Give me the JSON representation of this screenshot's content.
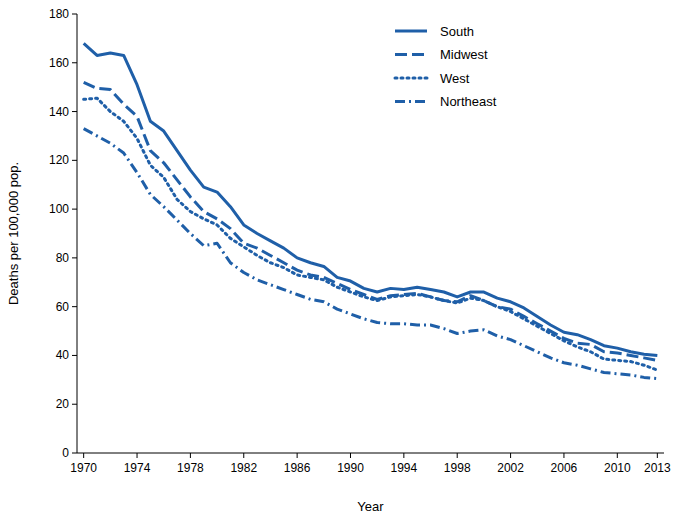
{
  "chart_data": {
    "type": "line",
    "x_label": "Year",
    "y_label": "Deaths per 100,000 pop.",
    "x": [
      1970,
      1971,
      1972,
      1973,
      1974,
      1975,
      1976,
      1977,
      1978,
      1979,
      1980,
      1981,
      1982,
      1983,
      1984,
      1985,
      1986,
      1987,
      1988,
      1989,
      1990,
      1991,
      1992,
      1993,
      1994,
      1995,
      1996,
      1997,
      1998,
      1999,
      2000,
      2001,
      2002,
      2003,
      2004,
      2005,
      2006,
      2007,
      2008,
      2009,
      2010,
      2011,
      2012,
      2013
    ],
    "series": [
      {
        "name": "South",
        "color": "#1f5fa8",
        "line_style": "solid",
        "values": [
          168,
          163,
          164,
          163,
          151,
          136,
          132,
          124,
          116,
          109,
          107,
          101,
          93.5,
          90,
          87,
          84,
          80,
          78,
          76.5,
          72,
          70.5,
          67.5,
          66,
          67.5,
          67,
          68,
          67,
          66,
          64,
          66,
          66,
          63.5,
          62,
          59.5,
          56,
          52.5,
          49.5,
          48.5,
          46.5,
          44,
          43,
          41.5,
          40.5,
          40
        ]
      },
      {
        "name": "Midwest",
        "color": "#1f5fa8",
        "line_style": "dashed",
        "values": [
          152,
          149.5,
          149,
          143,
          138,
          124,
          119,
          112,
          105,
          99,
          96,
          92,
          86,
          84,
          81,
          78,
          75,
          73,
          72,
          69.5,
          67,
          65,
          63,
          64.5,
          65,
          65.5,
          64,
          62.5,
          62,
          64.5,
          62.5,
          60,
          59,
          56,
          53,
          50,
          47,
          45,
          44.5,
          41.5,
          41,
          40,
          39,
          38
        ]
      },
      {
        "name": "West",
        "color": "#1f5fa8",
        "line_style": "dotted",
        "values": [
          145,
          145.5,
          140,
          136,
          129,
          118,
          113,
          104,
          99,
          96,
          93.5,
          88,
          84.5,
          81,
          78,
          76,
          73,
          72,
          71,
          68,
          66,
          64,
          62.5,
          64,
          64.5,
          65,
          64,
          62.5,
          61.5,
          63.5,
          62.5,
          60,
          58,
          55,
          52,
          49,
          46,
          43.5,
          41.5,
          38.5,
          38,
          37.5,
          36,
          34
        ]
      },
      {
        "name": "Northeast",
        "color": "#1f5fa8",
        "line_style": "dashdot",
        "values": [
          133,
          130,
          127,
          123,
          115,
          106,
          101,
          95.5,
          90,
          85,
          86,
          78,
          74,
          71,
          69,
          67,
          65,
          63,
          62,
          59,
          57,
          55,
          53.5,
          53,
          53,
          52.5,
          52.5,
          51,
          49,
          50,
          50.5,
          48,
          46.5,
          44,
          41.5,
          39,
          37,
          36,
          34.5,
          33,
          32.5,
          32,
          31,
          30.5
        ]
      }
    ],
    "xlim": [
      1969.5,
      2013.5
    ],
    "xticks": [
      1970,
      1974,
      1978,
      1982,
      1986,
      1990,
      1994,
      1998,
      2002,
      2006,
      2010,
      2013
    ],
    "ylim": [
      0,
      180
    ],
    "yticks": [
      0,
      20,
      40,
      60,
      80,
      100,
      120,
      140,
      160,
      180
    ],
    "grid": false,
    "legend": "upper right"
  }
}
